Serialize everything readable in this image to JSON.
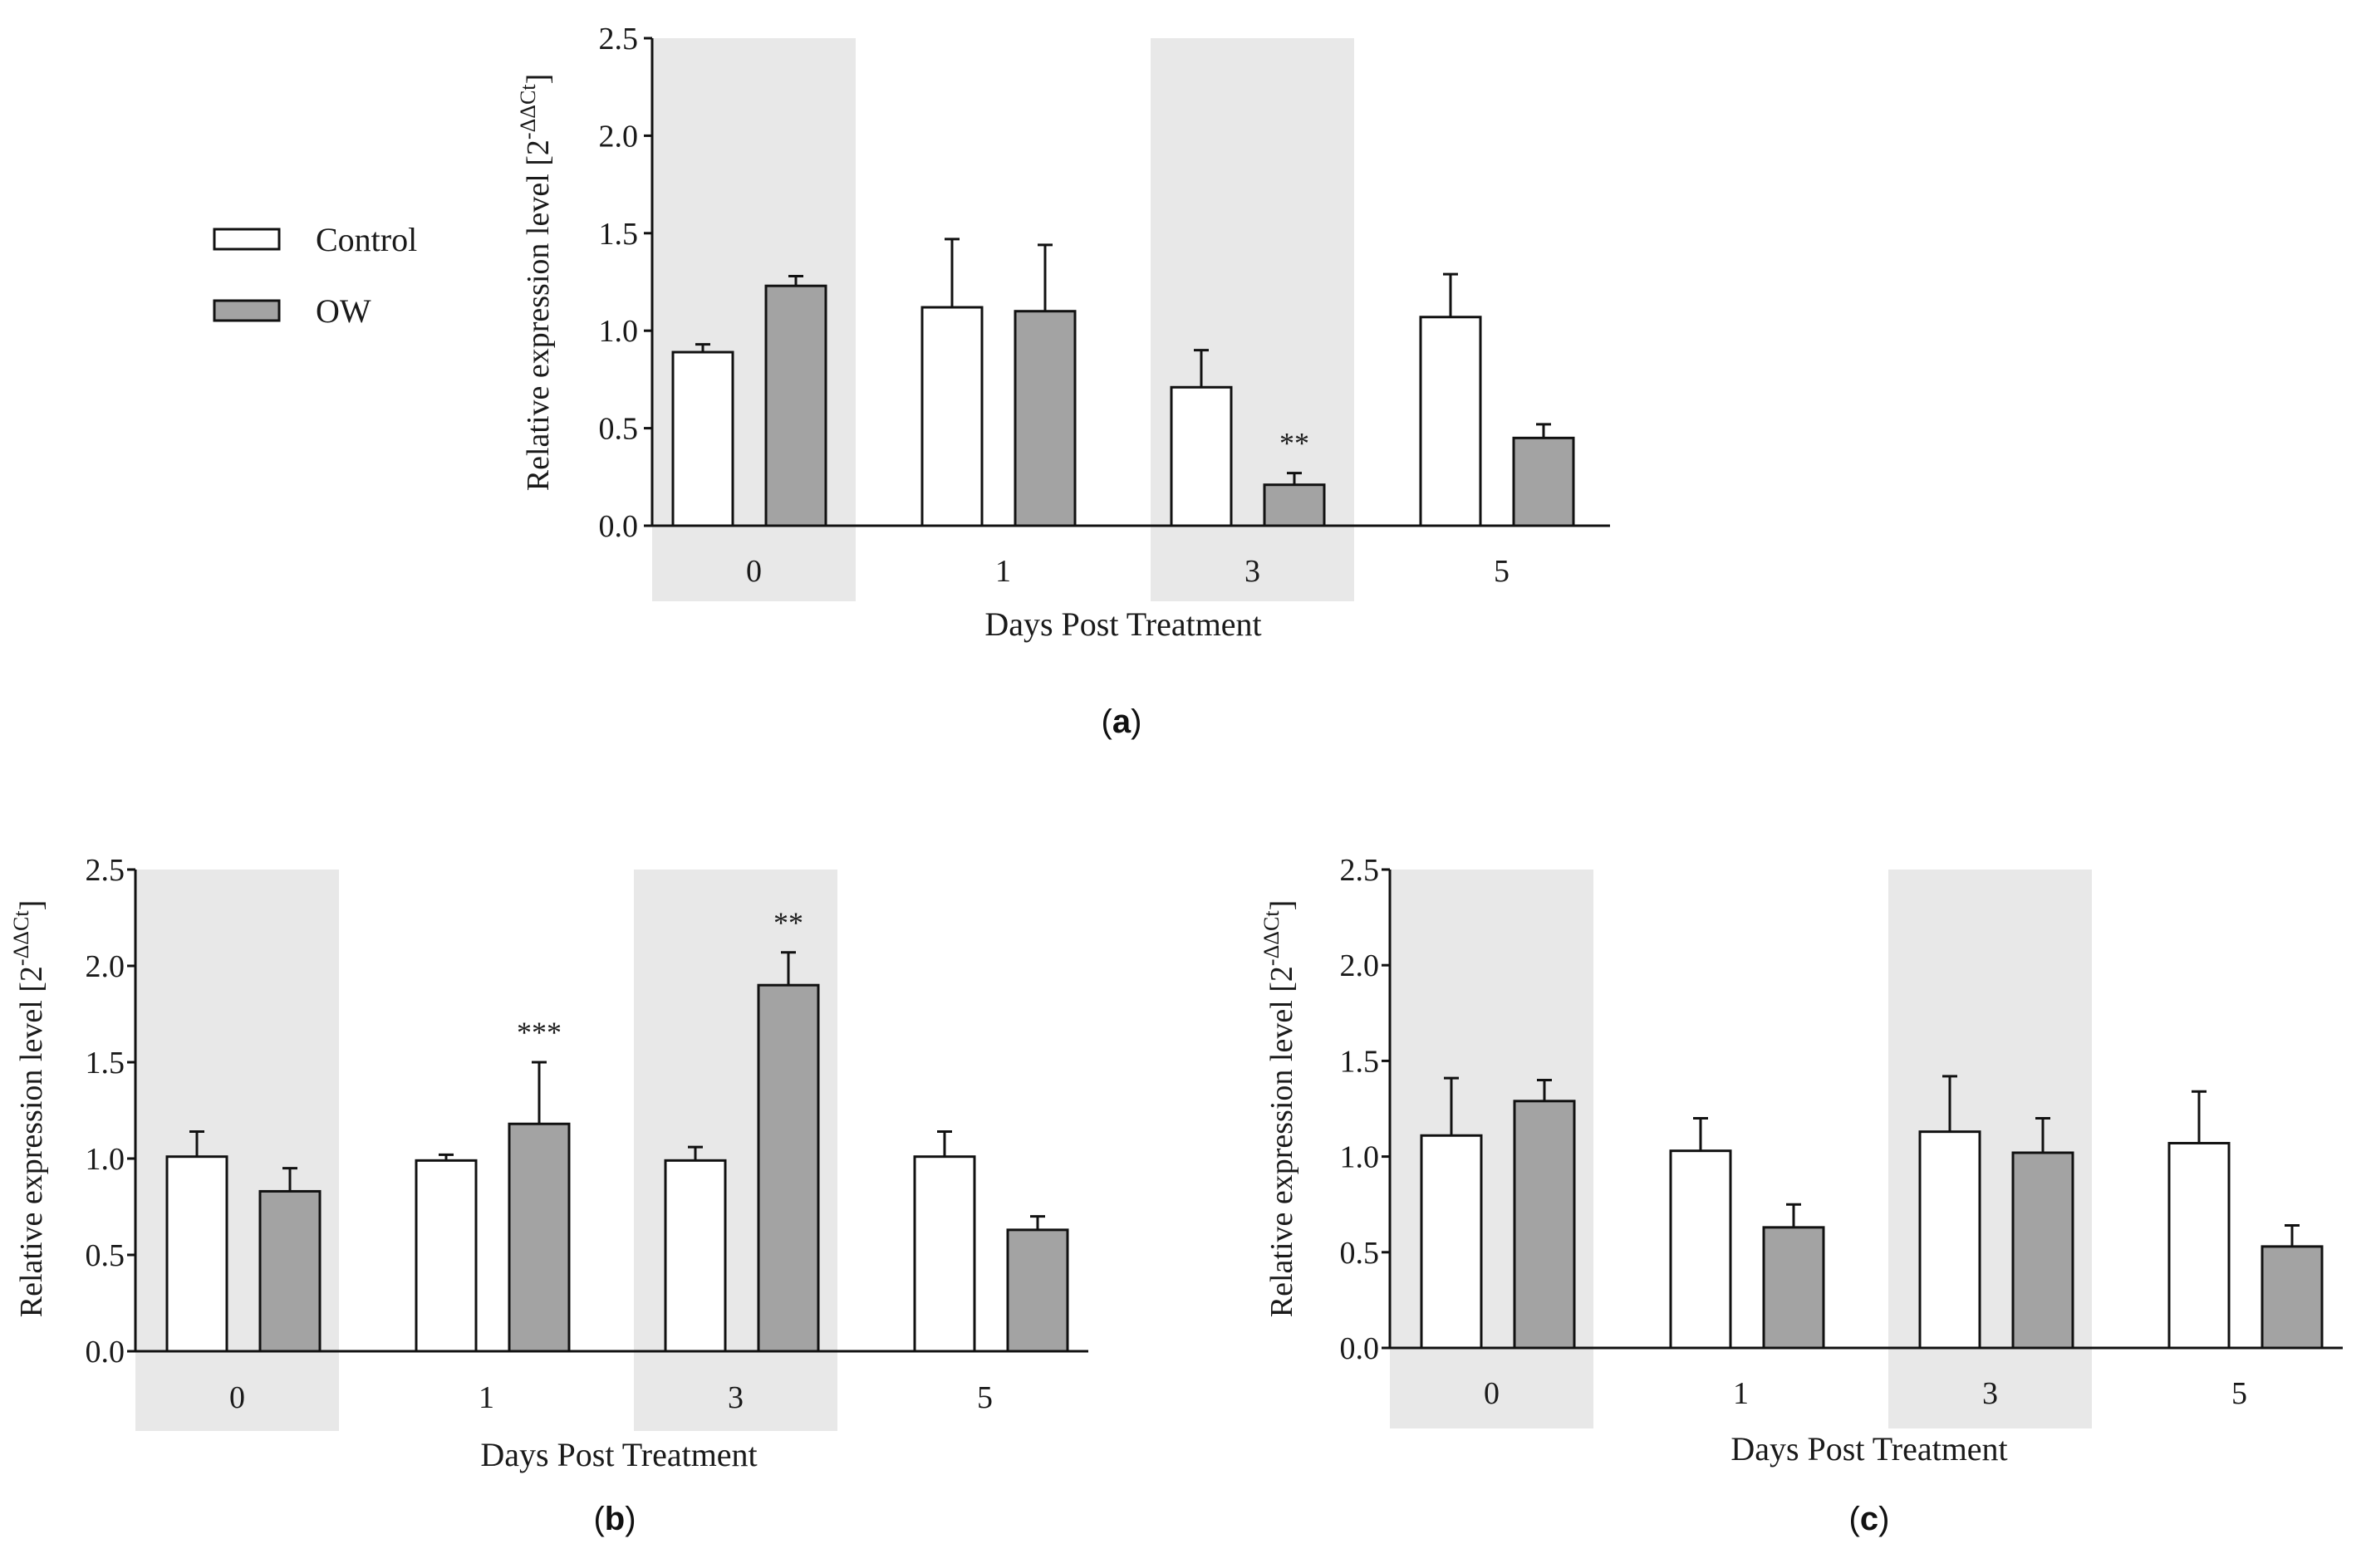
{
  "colors": {
    "control": "#ffffff",
    "ow": "#a3a3a3",
    "shade": "#e8e8e8",
    "stroke": "#111111"
  },
  "legend": {
    "placement": "left of panel (a)",
    "items": [
      {
        "label": "Control",
        "color": "#ffffff"
      },
      {
        "label": "OW",
        "color": "#a3a3a3"
      }
    ]
  },
  "chart_data": [
    {
      "panel": "a",
      "type": "bar",
      "xlabel": "Days Post Treatment",
      "ylabel": "Relative expression level [2",
      "ylabel_sup": "-ΔΔCt",
      "ylabel_end": "]",
      "ylim": [
        0,
        2.5
      ],
      "yticks": [
        "0.0",
        "0.5",
        "1.0",
        "1.5",
        "2.0",
        "2.5"
      ],
      "categories": [
        "0",
        "1",
        "3",
        "5"
      ],
      "shaded_categories": [
        "0",
        "3"
      ],
      "series": [
        {
          "name": "Control",
          "values": [
            0.89,
            1.12,
            0.71,
            1.07
          ],
          "errors": [
            0.04,
            0.35,
            0.19,
            0.22
          ]
        },
        {
          "name": "OW",
          "values": [
            1.23,
            1.1,
            0.21,
            0.45
          ],
          "errors": [
            0.05,
            0.34,
            0.06,
            0.07
          ]
        }
      ],
      "annotations": [
        {
          "category": "3",
          "series": "OW",
          "text": "**"
        }
      ]
    },
    {
      "panel": "b",
      "type": "bar",
      "xlabel": "Days Post Treatment",
      "ylabel": "Relative expression level [2",
      "ylabel_sup": "-ΔΔCt",
      "ylabel_end": "]",
      "ylim": [
        0,
        2.5
      ],
      "yticks": [
        "0.0",
        "0.5",
        "1.0",
        "1.5",
        "2.0",
        "2.5"
      ],
      "categories": [
        "0",
        "1",
        "3",
        "5"
      ],
      "shaded_categories": [
        "0",
        "3"
      ],
      "series": [
        {
          "name": "Control",
          "values": [
            1.01,
            0.99,
            0.99,
            1.01
          ],
          "errors": [
            0.13,
            0.03,
            0.07,
            0.13
          ]
        },
        {
          "name": "OW",
          "values": [
            0.83,
            1.18,
            1.9,
            0.63
          ],
          "errors": [
            0.12,
            0.32,
            0.17,
            0.07
          ]
        }
      ],
      "annotations": [
        {
          "category": "1",
          "series": "OW",
          "text": "***"
        },
        {
          "category": "3",
          "series": "OW",
          "text": "**"
        }
      ]
    },
    {
      "panel": "c",
      "type": "bar",
      "xlabel": "Days Post Treatment",
      "ylabel": "Relative expression level [2",
      "ylabel_sup": "-ΔΔCt",
      "ylabel_end": "]",
      "ylim": [
        0,
        2.5
      ],
      "yticks": [
        "0.0",
        "0.5",
        "1.0",
        "1.5",
        "2.0",
        "2.5"
      ],
      "categories": [
        "0",
        "1",
        "3",
        "5"
      ],
      "shaded_categories": [
        "0",
        "3"
      ],
      "series": [
        {
          "name": "Control",
          "values": [
            1.11,
            1.03,
            1.13,
            1.07
          ],
          "errors": [
            0.3,
            0.17,
            0.29,
            0.27
          ]
        },
        {
          "name": "OW",
          "values": [
            1.29,
            0.63,
            1.02,
            0.53
          ],
          "errors": [
            0.11,
            0.12,
            0.18,
            0.11
          ]
        }
      ],
      "annotations": []
    }
  ],
  "panel_labels": [
    "a",
    "b",
    "c"
  ]
}
